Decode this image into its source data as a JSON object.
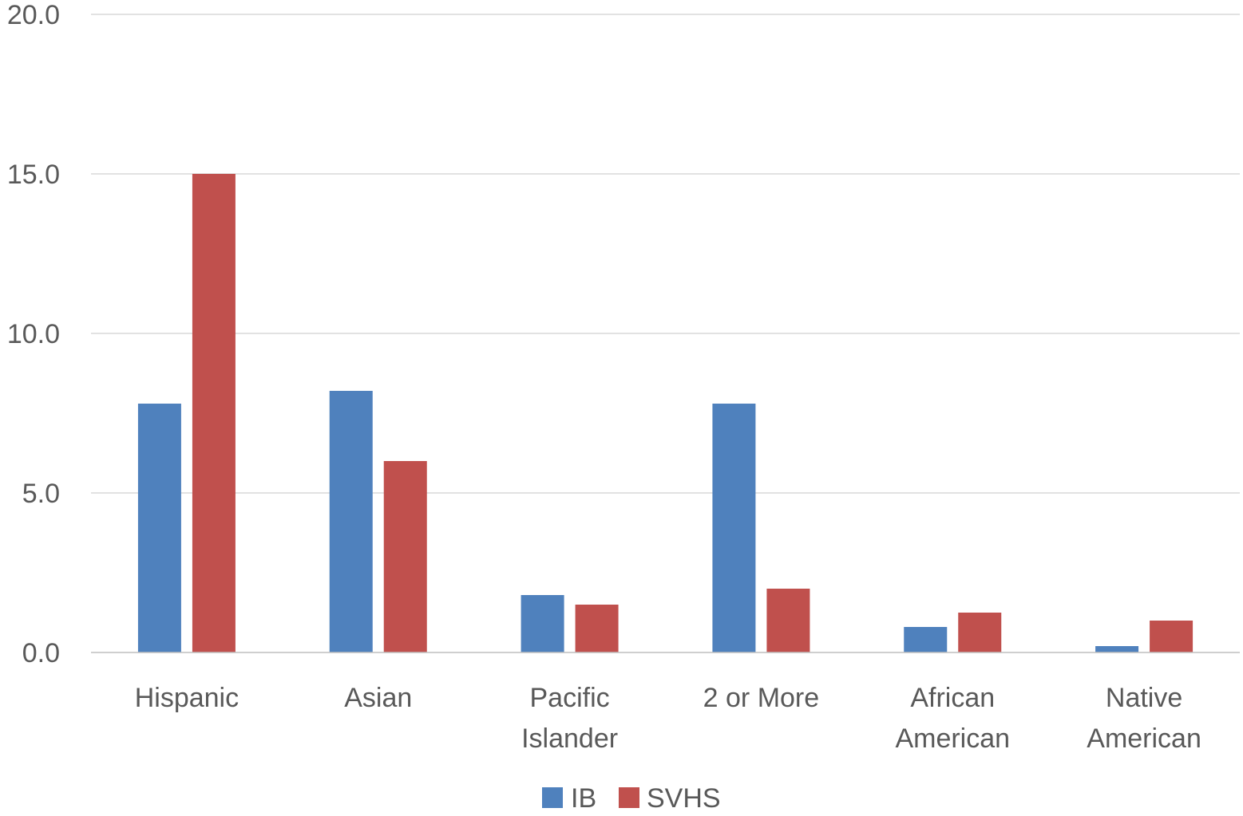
{
  "chart_data": {
    "type": "bar",
    "title": "",
    "xlabel": "",
    "ylabel": "",
    "categories": [
      [
        "Hispanic"
      ],
      [
        "Asian"
      ],
      [
        "Pacific",
        "Islander"
      ],
      [
        "2 or More"
      ],
      [
        "African",
        "American"
      ],
      [
        "Native",
        "American"
      ]
    ],
    "series": [
      {
        "name": "IB",
        "color": "#4f81bd",
        "values": [
          7.8,
          8.2,
          1.8,
          7.8,
          0.8,
          0.2
        ]
      },
      {
        "name": "SVHS",
        "color": "#c0504d",
        "values": [
          15.0,
          6.0,
          1.5,
          2.0,
          1.25,
          1.0
        ]
      }
    ],
    "ylim": [
      0,
      20
    ],
    "yticks": [
      "0.0",
      "5.0",
      "10.0",
      "15.0",
      "20.0"
    ],
    "grid": true,
    "legend_position": "bottom"
  }
}
